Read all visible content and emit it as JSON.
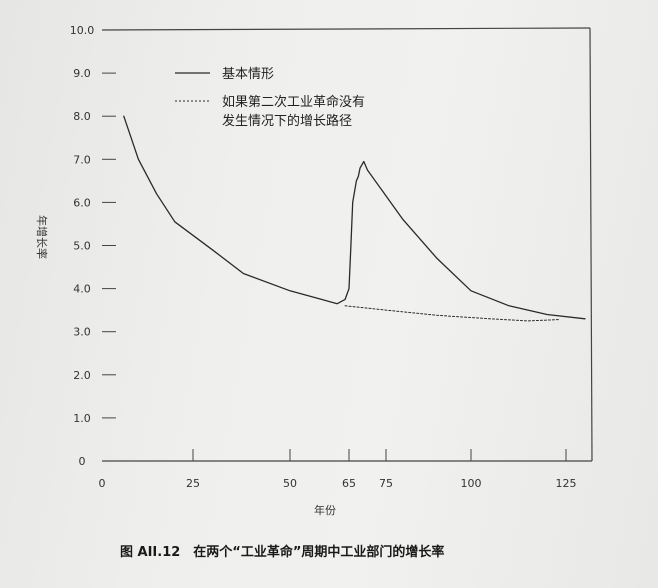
{
  "chart_data": {
    "type": "line",
    "title": "",
    "xlabel": "年份",
    "ylabel": "年增长率",
    "xlim": [
      0,
      130
    ],
    "ylim": [
      0,
      10
    ],
    "x_ticks": [
      "0",
      "25",
      "50",
      "65",
      "75",
      "100",
      "125"
    ],
    "y_ticks": [
      "0",
      "1.0",
      "2.0",
      "3.0",
      "4.0",
      "5.0",
      "6.0",
      "7.0",
      "8.0",
      "9.0",
      "10.0"
    ],
    "legend_position": "top-left",
    "series": [
      {
        "name": "基本情形",
        "style": "solid",
        "points": [
          [
            6,
            8.0
          ],
          [
            10,
            7.0
          ],
          [
            15,
            6.2
          ],
          [
            20,
            5.55
          ],
          [
            30,
            4.9
          ],
          [
            38,
            4.35
          ],
          [
            50,
            3.95
          ],
          [
            58,
            3.75
          ],
          [
            62,
            3.65
          ],
          [
            64,
            3.75
          ],
          [
            65,
            4.0
          ],
          [
            65.5,
            5.0
          ],
          [
            66,
            6.0
          ],
          [
            67,
            6.5
          ],
          [
            67.5,
            6.6
          ],
          [
            68,
            6.8
          ],
          [
            69,
            6.95
          ],
          [
            70,
            6.75
          ],
          [
            75,
            6.15
          ],
          [
            80,
            5.6
          ],
          [
            90,
            4.7
          ],
          [
            100,
            3.95
          ],
          [
            110,
            3.6
          ],
          [
            120,
            3.4
          ],
          [
            130,
            3.3
          ]
        ]
      },
      {
        "name": "如果第二次工业革命没有发生情况下的增长路径",
        "legend_lines": [
          "如果第二次工业革命没有",
          "发生情况下的增长路径"
        ],
        "style": "dashed",
        "points": [
          [
            64,
            3.6
          ],
          [
            75,
            3.5
          ],
          [
            90,
            3.38
          ],
          [
            105,
            3.3
          ],
          [
            115,
            3.25
          ],
          [
            123,
            3.28
          ]
        ]
      }
    ]
  },
  "caption": "图 AII.12　在两个“工业革命”周期中工业部门的增长率",
  "colors": {
    "line": "#2a2a2a",
    "axis": "#444444"
  }
}
